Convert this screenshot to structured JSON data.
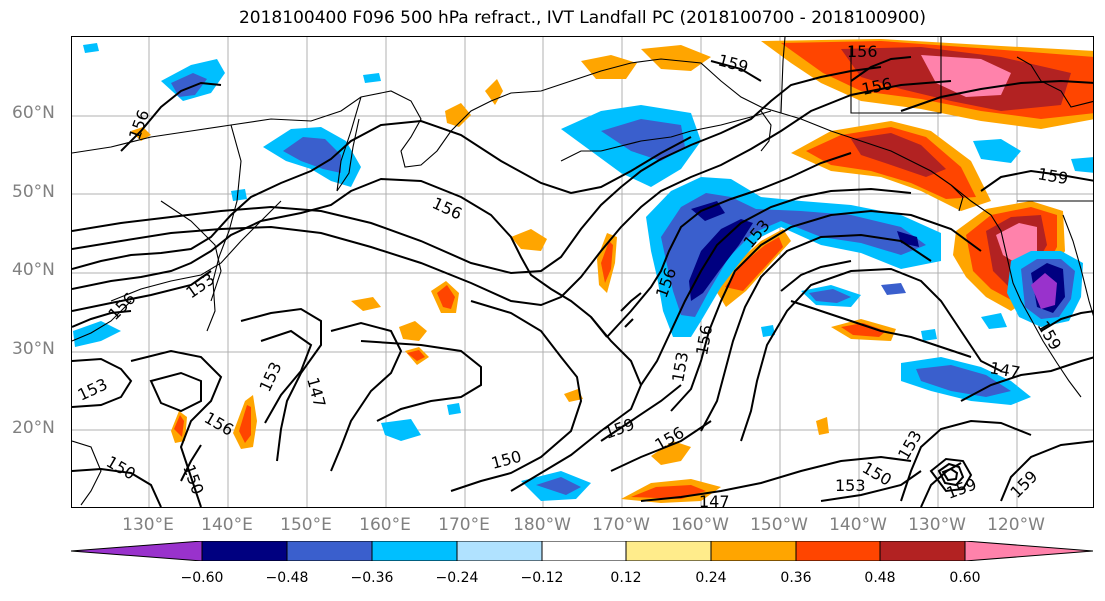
{
  "title": "2018100400 F096 500 hPa refract., IVT Landfall PC (2018100700 - 2018100900)",
  "lat_labels": [
    "60°N",
    "50°N",
    "40°N",
    "30°N",
    "20°N"
  ],
  "lon_labels": [
    "130°E",
    "140°E",
    "150°E",
    "160°E",
    "170°E",
    "180°W",
    "170°W",
    "160°W",
    "150°W",
    "140°W",
    "130°W",
    "120°W"
  ],
  "colorbar": {
    "colors": [
      "#9932CC",
      "#000080",
      "#3A5FCD",
      "#00BFFF",
      "#B0E2FF",
      "#FFFFFF",
      "#FFEC8B",
      "#FFA500",
      "#FF4500",
      "#B22222",
      "#FF82AB"
    ],
    "tick_labels": [
      "−0.60",
      "−0.48",
      "−0.36",
      "−0.24",
      "−0.12",
      "0.12",
      "0.24",
      "0.36",
      "0.48",
      "0.60"
    ]
  },
  "contour_labels": [
    "156",
    "159",
    "156",
    "159",
    "156",
    "153",
    "156",
    "156",
    "153",
    "153",
    "153",
    "156",
    "153",
    "147",
    "156",
    "150",
    "150",
    "150",
    "159",
    "156",
    "147",
    "150",
    "153",
    "153",
    "159",
    "159",
    "147",
    "156",
    "159"
  ]
}
